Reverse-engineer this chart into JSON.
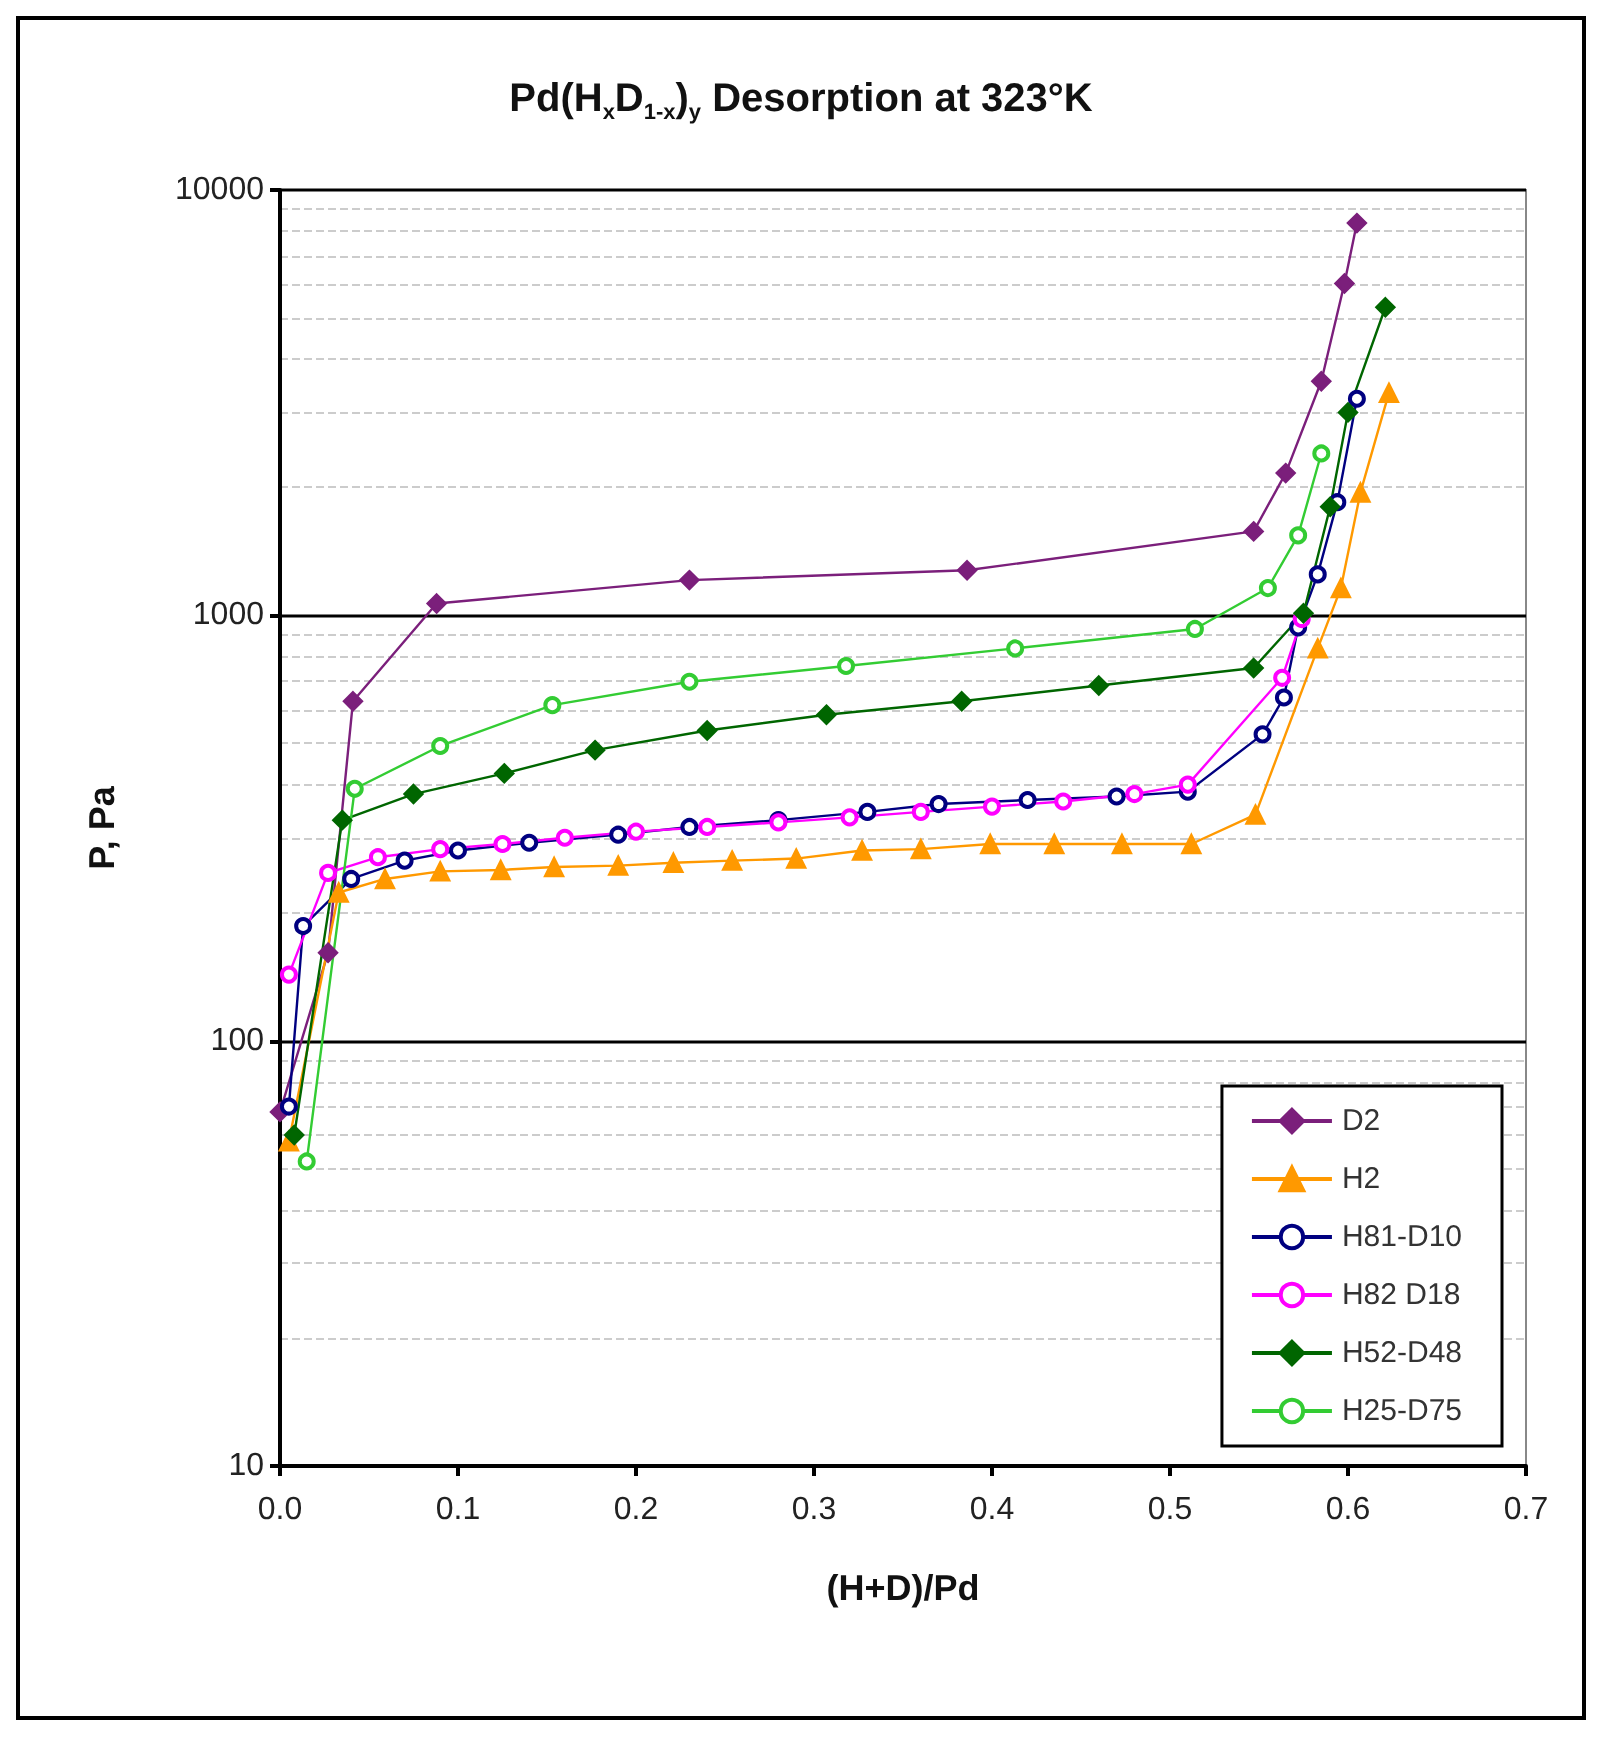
{
  "chart_data": {
    "type": "line",
    "title": "Pd(H$_{x}$D$_{1-x}$)$_{y}$ Desorption at 323°K",
    "xlabel": "(H+D)/Pd",
    "ylabel": "P, Pa",
    "log": "y",
    "grid": "y",
    "legend": "bottom right",
    "xlim": [
      0,
      0.7
    ],
    "xticks": [
      {
        "value": 0,
        "label": "0.0"
      },
      0.1,
      0.2,
      0.3,
      0.4,
      0.5,
      0.6,
      0.7
    ],
    "ylim": [
      10,
      10000
    ],
    "yticks": [
      10,
      100,
      1000,
      10000
    ],
    "series": [
      {
        "name": "D2",
        "color": "#7b1f7b",
        "marker": "diamond",
        "x": [
          0.0,
          0.027,
          0.041,
          0.088,
          0.23,
          0.386,
          0.547,
          0.565,
          0.585,
          0.598,
          0.605
        ],
        "values": [
          68,
          161,
          628,
          1066,
          1210,
          1276,
          1575,
          2160,
          3550,
          6030,
          8360
        ]
      },
      {
        "name": "H2",
        "color": "#ff9900",
        "marker": "triangle",
        "x": [
          0.005,
          0.033,
          0.059,
          0.09,
          0.124,
          0.154,
          0.19,
          0.221,
          0.254,
          0.29,
          0.327,
          0.36,
          0.399,
          0.435,
          0.473,
          0.512,
          0.548,
          0.583,
          0.596,
          0.607,
          0.623
        ],
        "values": [
          58,
          223,
          240,
          250,
          252,
          256,
          258,
          262,
          265,
          268,
          280,
          282,
          290,
          290,
          290,
          290,
          340,
          836,
          1159,
          1945,
          3335
        ]
      },
      {
        "name": "H81-D10",
        "color": "#000080",
        "marker": "circle",
        "x": [
          0.005,
          0.013,
          0.04,
          0.07,
          0.1,
          0.14,
          0.19,
          0.23,
          0.28,
          0.33,
          0.37,
          0.42,
          0.47,
          0.51,
          0.552,
          0.564,
          0.572,
          0.583,
          0.594,
          0.605
        ],
        "values": [
          70,
          186,
          240,
          265,
          280,
          292,
          305,
          318,
          330,
          345,
          360,
          368,
          375,
          385,
          525,
          641,
          937,
          1248,
          1845,
          3230
        ]
      },
      {
        "name": "H82 D18",
        "color": "#ff00ff",
        "marker": "circle",
        "x": [
          0.005,
          0.027,
          0.055,
          0.09,
          0.125,
          0.16,
          0.2,
          0.24,
          0.28,
          0.32,
          0.36,
          0.4,
          0.44,
          0.48,
          0.51,
          0.563,
          0.574
        ],
        "values": [
          143,
          248,
          270,
          282,
          290,
          300,
          310,
          318,
          326,
          335,
          345,
          355,
          365,
          380,
          400,
          713,
          980
        ]
      },
      {
        "name": "H52-D48",
        "color": "#006600",
        "marker": "diamond",
        "x": [
          0.008,
          0.035,
          0.075,
          0.126,
          0.177,
          0.24,
          0.307,
          0.383,
          0.46,
          0.547,
          0.575,
          0.59,
          0.6,
          0.621
        ],
        "values": [
          60,
          330,
          380,
          425,
          482,
          536,
          584,
          628,
          684,
          752,
          1011,
          1800,
          3000,
          5300
        ]
      },
      {
        "name": "H25-D75",
        "color": "#33cc33",
        "marker": "circle",
        "x": [
          0.015,
          0.042,
          0.09,
          0.153,
          0.23,
          0.318,
          0.413,
          0.514,
          0.555,
          0.572,
          0.585
        ],
        "values": [
          52,
          391,
          493,
          615,
          698,
          760,
          836,
          929,
          1159,
          1542,
          2402
        ]
      }
    ]
  }
}
